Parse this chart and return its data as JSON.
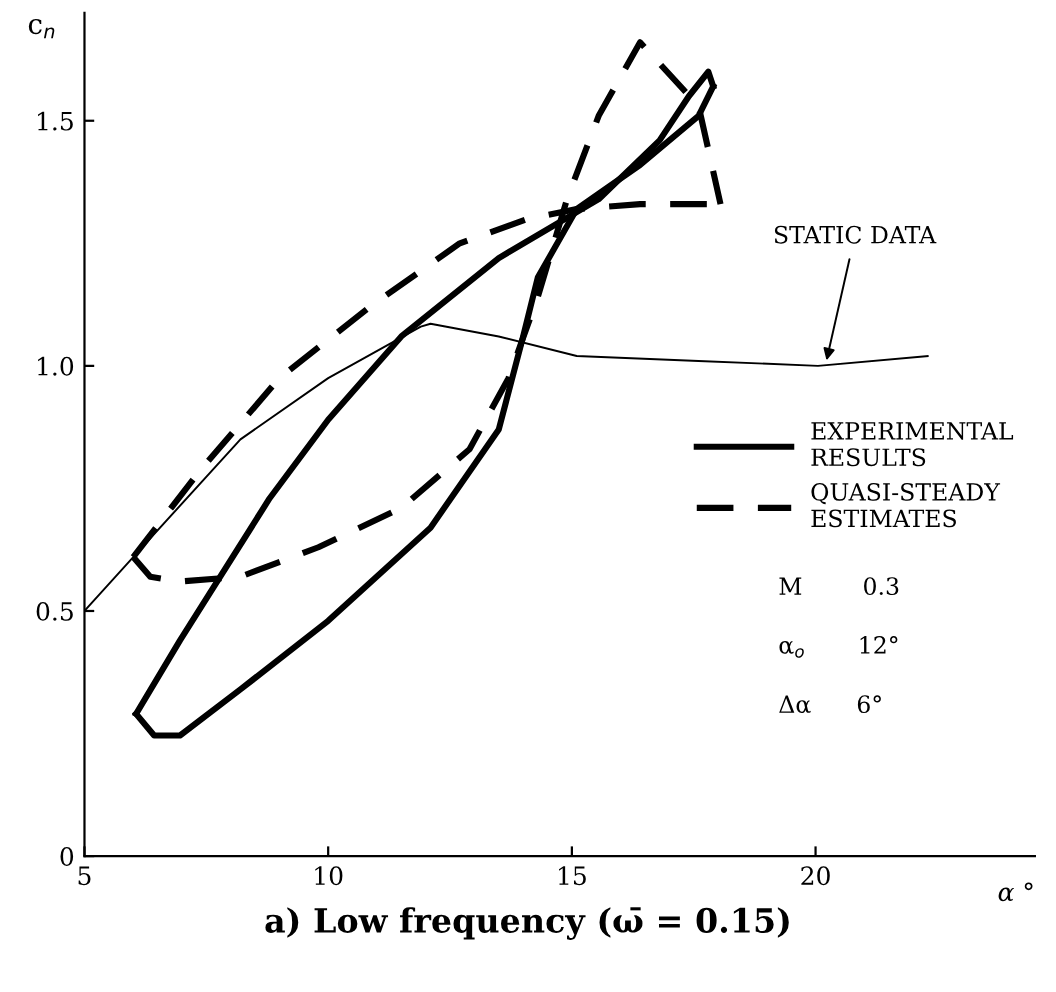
{
  "chart_data": {
    "type": "line",
    "title": "a) Low frequency (ω̄ = 0.15)",
    "xlabel": "α °",
    "ylabel": "c$_{n}$",
    "xlim": [
      5,
      24.5
    ],
    "ylim": [
      0,
      1.72
    ],
    "xticks": [
      5,
      10,
      15,
      20
    ],
    "yticks": [
      0,
      0.5,
      {
        "value": 1.0,
        "label": "1.0"
      },
      1.5
    ],
    "grid": false,
    "legend": "right",
    "marker": "none",
    "series": [
      {
        "name": "EXPERIMENTAL\nRESULTS",
        "color": "#000000",
        "line_style": "solid",
        "x": [
          6.06,
          6.96,
          8.8,
          10.0,
          11.5,
          13.5,
          15.55,
          16.8,
          17.4,
          17.8,
          17.9
        ],
        "values": [
          0.29,
          0.44,
          0.73,
          0.89,
          1.06,
          1.22,
          1.34,
          1.46,
          1.55,
          1.6,
          1.57
        ]
      },
      {
        "color": "#000000",
        "line_style": "solid",
        "x": [
          6.06,
          6.43,
          6.96,
          8.2,
          10.0,
          12.1,
          13.5,
          14.0,
          14.3,
          15.1,
          16.4,
          17.6,
          17.9
        ],
        "values": [
          0.29,
          0.246,
          0.246,
          0.34,
          0.48,
          0.67,
          0.87,
          1.06,
          1.18,
          1.32,
          1.41,
          1.51,
          1.57
        ]
      },
      {
        "name": "QUASI-STEADY\nESTIMATES",
        "color": "#000000",
        "line_style": "dashed",
        "x": [
          6.0,
          7.4,
          9.0,
          10.85,
          12.7,
          14.1,
          15.1,
          16.4,
          18.05
        ],
        "values": [
          0.61,
          0.79,
          0.975,
          1.12,
          1.25,
          1.3,
          1.32,
          1.33,
          1.33
        ]
      },
      {
        "color": "#000000",
        "line_style": "dashed",
        "x": [
          6.0,
          6.35,
          6.96,
          8.2,
          9.8,
          11.5,
          12.9,
          13.7,
          14.3,
          14.9,
          15.55,
          16.4,
          17.6,
          18.05
        ],
        "values": [
          0.61,
          0.57,
          0.56,
          0.57,
          0.63,
          0.71,
          0.83,
          0.975,
          1.14,
          1.34,
          1.51,
          1.66,
          1.53,
          1.33
        ]
      },
      {
        "color": "#000000",
        "line_style": "solid",
        "x": [
          5,
          6.0,
          8.2,
          10.0,
          11.9,
          12.1,
          13.5,
          15.1,
          17.6,
          20.05,
          22.3
        ],
        "values": [
          0.5,
          0.61,
          0.85,
          0.975,
          1.08,
          1.086,
          1.06,
          1.02,
          1.01,
          1.0,
          1.02
        ]
      }
    ],
    "annotations": [
      {
        "text": "STATIC DATA",
        "x": 20.2,
        "y": 1.0
      },
      "M        0.3",
      "α$_{o}$       12°",
      "Δα      6°"
    ]
  }
}
